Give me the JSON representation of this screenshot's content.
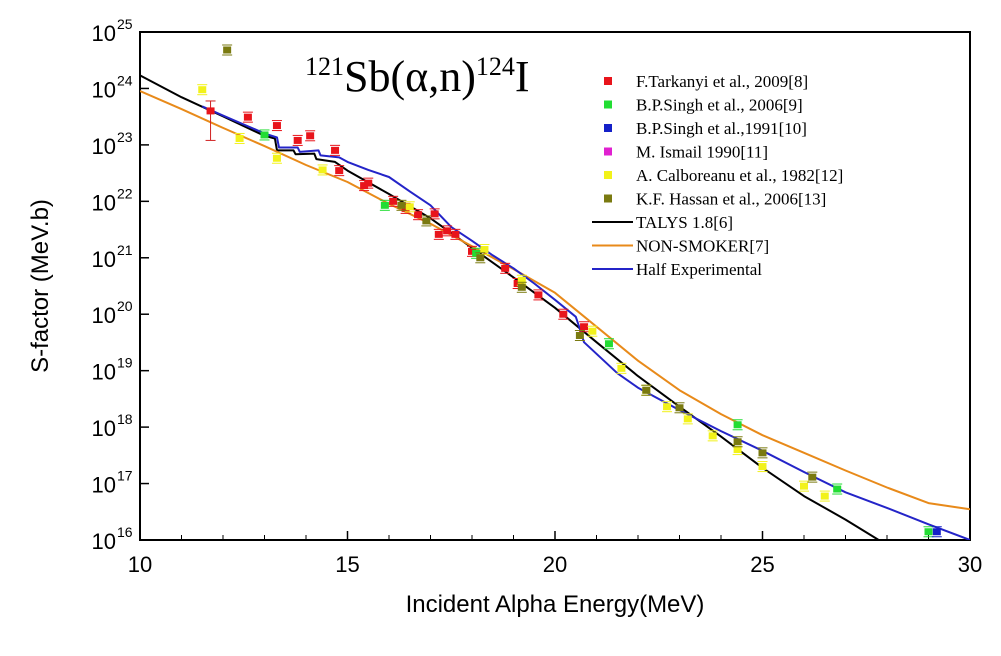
{
  "chart_data": {
    "type": "scatter",
    "title": {
      "parts": [
        {
          "text": "121",
          "sup": true
        },
        {
          "text": "Sb(",
          "sup": false
        },
        {
          "text": "α",
          "sup": false
        },
        {
          "text": ",n)",
          "sup": false
        },
        {
          "text": "124",
          "sup": true
        },
        {
          "text": "I",
          "sup": false
        }
      ]
    },
    "xlabel": "Incident Alpha Energy(MeV)",
    "ylabel": "S-factor (MeV.b)",
    "xlim": [
      10,
      30
    ],
    "ylim_exp": [
      16,
      25
    ],
    "y_scale": "log",
    "x_ticks": [
      10,
      15,
      20,
      25,
      30
    ],
    "x_tick_labels": [
      "10",
      "15",
      "20",
      "25",
      "30"
    ],
    "y_tick_labels": [
      {
        "base": "10",
        "exp": "16"
      },
      {
        "base": "10",
        "exp": "17"
      },
      {
        "base": "10",
        "exp": "18"
      },
      {
        "base": "10",
        "exp": "19"
      },
      {
        "base": "10",
        "exp": "20"
      },
      {
        "base": "10",
        "exp": "21"
      },
      {
        "base": "10",
        "exp": "22"
      },
      {
        "base": "10",
        "exp": "23"
      },
      {
        "base": "10",
        "exp": "24"
      },
      {
        "base": "10",
        "exp": "25"
      }
    ],
    "grid": false,
    "legend_position": "top-right",
    "scatter_series": [
      {
        "name": "F.Tarkanyi et al., 2009[8]",
        "color": "#e8141b",
        "points": [
          {
            "x": 11.7,
            "y": 4e+23,
            "err": [
              1.2e+23,
              6e+23
            ]
          },
          {
            "x": 12.6,
            "y": 3.1e+23
          },
          {
            "x": 13.3,
            "y": 2.2e+23
          },
          {
            "x": 13.8,
            "y": 1.2e+23
          },
          {
            "x": 14.1,
            "y": 1.45e+23
          },
          {
            "x": 14.7,
            "y": 8e+22
          },
          {
            "x": 14.8,
            "y": 3.5e+22
          },
          {
            "x": 15.4,
            "y": 1.9e+22
          },
          {
            "x": 15.5,
            "y": 2.1e+22
          },
          {
            "x": 16.1,
            "y": 1e+22
          },
          {
            "x": 16.4,
            "y": 7.5e+21
          },
          {
            "x": 16.7,
            "y": 5.8e+21
          },
          {
            "x": 17.1,
            "y": 6e+21
          },
          {
            "x": 17.2,
            "y": 2.6e+21
          },
          {
            "x": 17.4,
            "y": 3e+21
          },
          {
            "x": 17.6,
            "y": 2.6e+21
          },
          {
            "x": 18.0,
            "y": 1.3e+21
          },
          {
            "x": 18.8,
            "y": 6.5e+20
          },
          {
            "x": 19.1,
            "y": 3.5e+20
          },
          {
            "x": 19.6,
            "y": 2.2e+20
          },
          {
            "x": 20.2,
            "y": 1e+20
          },
          {
            "x": 20.7,
            "y": 6e+19
          }
        ]
      },
      {
        "name": "B.P.Singh et al., 2006[9]",
        "color": "#22dd33",
        "points": [
          {
            "x": 13.0,
            "y": 1.5e+23
          },
          {
            "x": 15.9,
            "y": 8.5e+21
          },
          {
            "x": 18.1,
            "y": 1.2e+21
          },
          {
            "x": 21.3,
            "y": 3e+19
          },
          {
            "x": 24.4,
            "y": 1.1e+18
          },
          {
            "x": 26.8,
            "y": 8e+16
          },
          {
            "x": 29.0,
            "y": 1.4e+16
          }
        ]
      },
      {
        "name": "B.P.Singh et al.,1991[10]",
        "color": "#1420c8",
        "points": [
          {
            "x": 29.2,
            "y": 1.4e+16
          }
        ]
      },
      {
        "name": "M. Ismail 1990[11]",
        "color": "#e020d0",
        "points": []
      },
      {
        "name": "A. Calboreanu et al., 1982[12]",
        "color": "#f2f21a",
        "points": [
          {
            "x": 11.5,
            "y": 9.5e+23
          },
          {
            "x": 12.4,
            "y": 1.3e+23
          },
          {
            "x": 13.3,
            "y": 5.8e+22
          },
          {
            "x": 14.4,
            "y": 3.6e+22
          },
          {
            "x": 16.5,
            "y": 8e+21
          },
          {
            "x": 18.3,
            "y": 1.4e+21
          },
          {
            "x": 19.2,
            "y": 4e+20
          },
          {
            "x": 20.9,
            "y": 5e+19
          },
          {
            "x": 21.6,
            "y": 1.1e+19
          },
          {
            "x": 22.2,
            "y": 4.5e+18
          },
          {
            "x": 22.7,
            "y": 2.3e+18
          },
          {
            "x": 23.2,
            "y": 1.4e+18
          },
          {
            "x": 23.8,
            "y": 7e+17
          },
          {
            "x": 24.4,
            "y": 4e+17
          },
          {
            "x": 25.0,
            "y": 2e+17
          },
          {
            "x": 26.0,
            "y": 9e+16
          },
          {
            "x": 26.5,
            "y": 6e+16
          }
        ]
      },
      {
        "name": "K.F. Hassan et al., 2006[13]",
        "color": "#7a7a10",
        "points": [
          {
            "x": 12.1,
            "y": 4.8e+24
          },
          {
            "x": 16.3,
            "y": 8.5e+21
          },
          {
            "x": 16.9,
            "y": 4.5e+21
          },
          {
            "x": 18.2,
            "y": 1e+21
          },
          {
            "x": 19.2,
            "y": 3e+20
          },
          {
            "x": 20.6,
            "y": 4.2e+19
          },
          {
            "x": 22.2,
            "y": 4.5e+18
          },
          {
            "x": 23.0,
            "y": 2.2e+18
          },
          {
            "x": 24.4,
            "y": 5.5e+17
          },
          {
            "x": 25.0,
            "y": 3.5e+17
          },
          {
            "x": 26.2,
            "y": 1.3e+17
          }
        ]
      }
    ],
    "line_series": [
      {
        "name": "TALYS 1.8[6]",
        "color": "#000000",
        "points": [
          [
            10,
            1.7e+24
          ],
          [
            11,
            7e+23
          ],
          [
            12,
            3.2e+23
          ],
          [
            13,
            1.45e+23
          ],
          [
            13.25,
            1.3e+23
          ],
          [
            13.3,
            8e+22
          ],
          [
            13.7,
            8e+22
          ],
          [
            13.75,
            6.8e+22
          ],
          [
            14.2,
            7e+22
          ],
          [
            14.25,
            5.6e+22
          ],
          [
            14.7,
            5e+22
          ],
          [
            15,
            3.5e+22
          ],
          [
            16,
            1.35e+22
          ],
          [
            17,
            5e+21
          ],
          [
            18,
            1.5e+21
          ],
          [
            19,
            4.5e+20
          ],
          [
            20,
            1.3e+20
          ],
          [
            21,
            3.2e+19
          ],
          [
            22,
            8e+18
          ],
          [
            23,
            2.3e+18
          ],
          [
            24,
            6.8e+17
          ],
          [
            25,
            1.9e+17
          ],
          [
            26,
            6e+16
          ],
          [
            27,
            2.3e+16
          ],
          [
            27.8,
            1e+16
          ]
        ]
      },
      {
        "name": "NON-SMOKER[7]",
        "color": "#e88a1a",
        "points": [
          [
            10,
            9e+23
          ],
          [
            11,
            4.3e+23
          ],
          [
            12,
            2e+23
          ],
          [
            13,
            9.5e+22
          ],
          [
            14,
            4.4e+22
          ],
          [
            15,
            2.2e+22
          ],
          [
            16,
            9e+21
          ],
          [
            17,
            4e+21
          ],
          [
            18,
            1.6e+21
          ],
          [
            19,
            6.3e+20
          ],
          [
            20,
            2.4e+20
          ],
          [
            21,
            6e+19
          ],
          [
            22,
            1.5e+19
          ],
          [
            23,
            4.5e+18
          ],
          [
            24,
            1.7e+18
          ],
          [
            25,
            7.2e+17
          ],
          [
            26,
            3.5e+17
          ],
          [
            27,
            1.7e+17
          ],
          [
            28,
            8.5e+16
          ],
          [
            29,
            4.5e+16
          ],
          [
            30,
            3.5e+16
          ]
        ]
      },
      {
        "name": "Half Experimental",
        "color": "#2424c8",
        "points": [
          [
            11.5,
            4.8e+23
          ],
          [
            12,
            3.3e+23
          ],
          [
            12.5,
            2.3e+23
          ],
          [
            13,
            1.6e+23
          ],
          [
            13.3,
            1.35e+23
          ],
          [
            13.35,
            9e+22
          ],
          [
            13.8,
            9e+22
          ],
          [
            13.85,
            7.5e+22
          ],
          [
            14.3,
            8e+22
          ],
          [
            14.35,
            6.5e+22
          ],
          [
            14.8,
            6e+22
          ],
          [
            15,
            5e+22
          ],
          [
            15.5,
            3.6e+22
          ],
          [
            16,
            2.7e+22
          ],
          [
            16.5,
            1.5e+22
          ],
          [
            17,
            8.5e+21
          ],
          [
            17.5,
            3.5e+21
          ],
          [
            18,
            2e+21
          ],
          [
            18.5,
            1.1e+21
          ],
          [
            19,
            6.5e+20
          ],
          [
            19.5,
            3.5e+20
          ],
          [
            20,
            1.8e+20
          ],
          [
            20.5,
            9e+19
          ],
          [
            20.6,
            5.5e+19
          ],
          [
            20.7,
            3.2e+19
          ],
          [
            21.5,
            9e+18
          ],
          [
            22,
            5e+18
          ],
          [
            23,
            2e+18
          ],
          [
            24,
            8.5e+17
          ],
          [
            25,
            3.8e+17
          ],
          [
            26,
            1.6e+17
          ],
          [
            27,
            7e+16
          ],
          [
            28,
            3.7e+16
          ],
          [
            29,
            1.9e+16
          ],
          [
            30,
            1e+16
          ]
        ]
      }
    ]
  }
}
